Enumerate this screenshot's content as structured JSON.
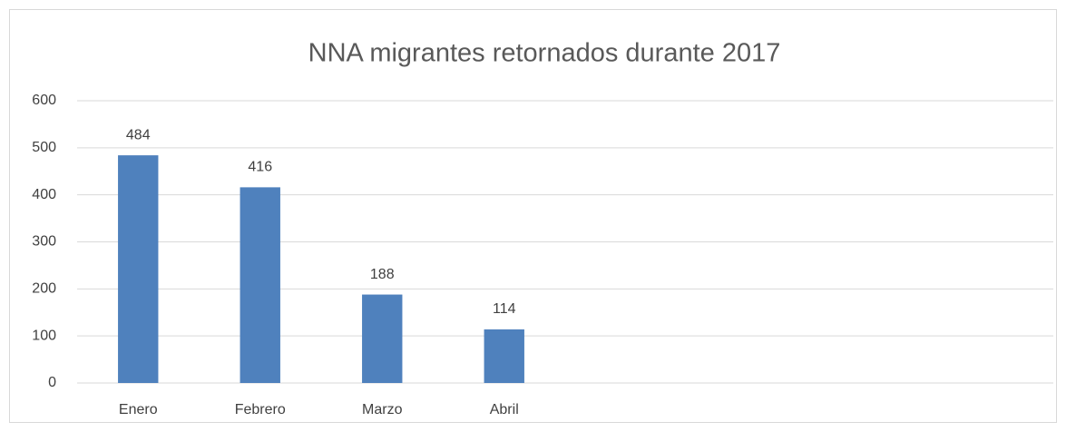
{
  "chart_data": {
    "type": "bar",
    "title": "NNA migrantes retornados durante 2017",
    "categories": [
      "Enero",
      "Febrero",
      "Marzo",
      "Abril",
      null,
      null,
      null,
      null
    ],
    "values": [
      484,
      416,
      188,
      114,
      null,
      null,
      null,
      null
    ],
    "color": "#4f81bd",
    "ylim": [
      0,
      600
    ],
    "yticks": [
      0,
      100,
      200,
      300,
      400,
      500,
      600
    ],
    "grid": true
  }
}
